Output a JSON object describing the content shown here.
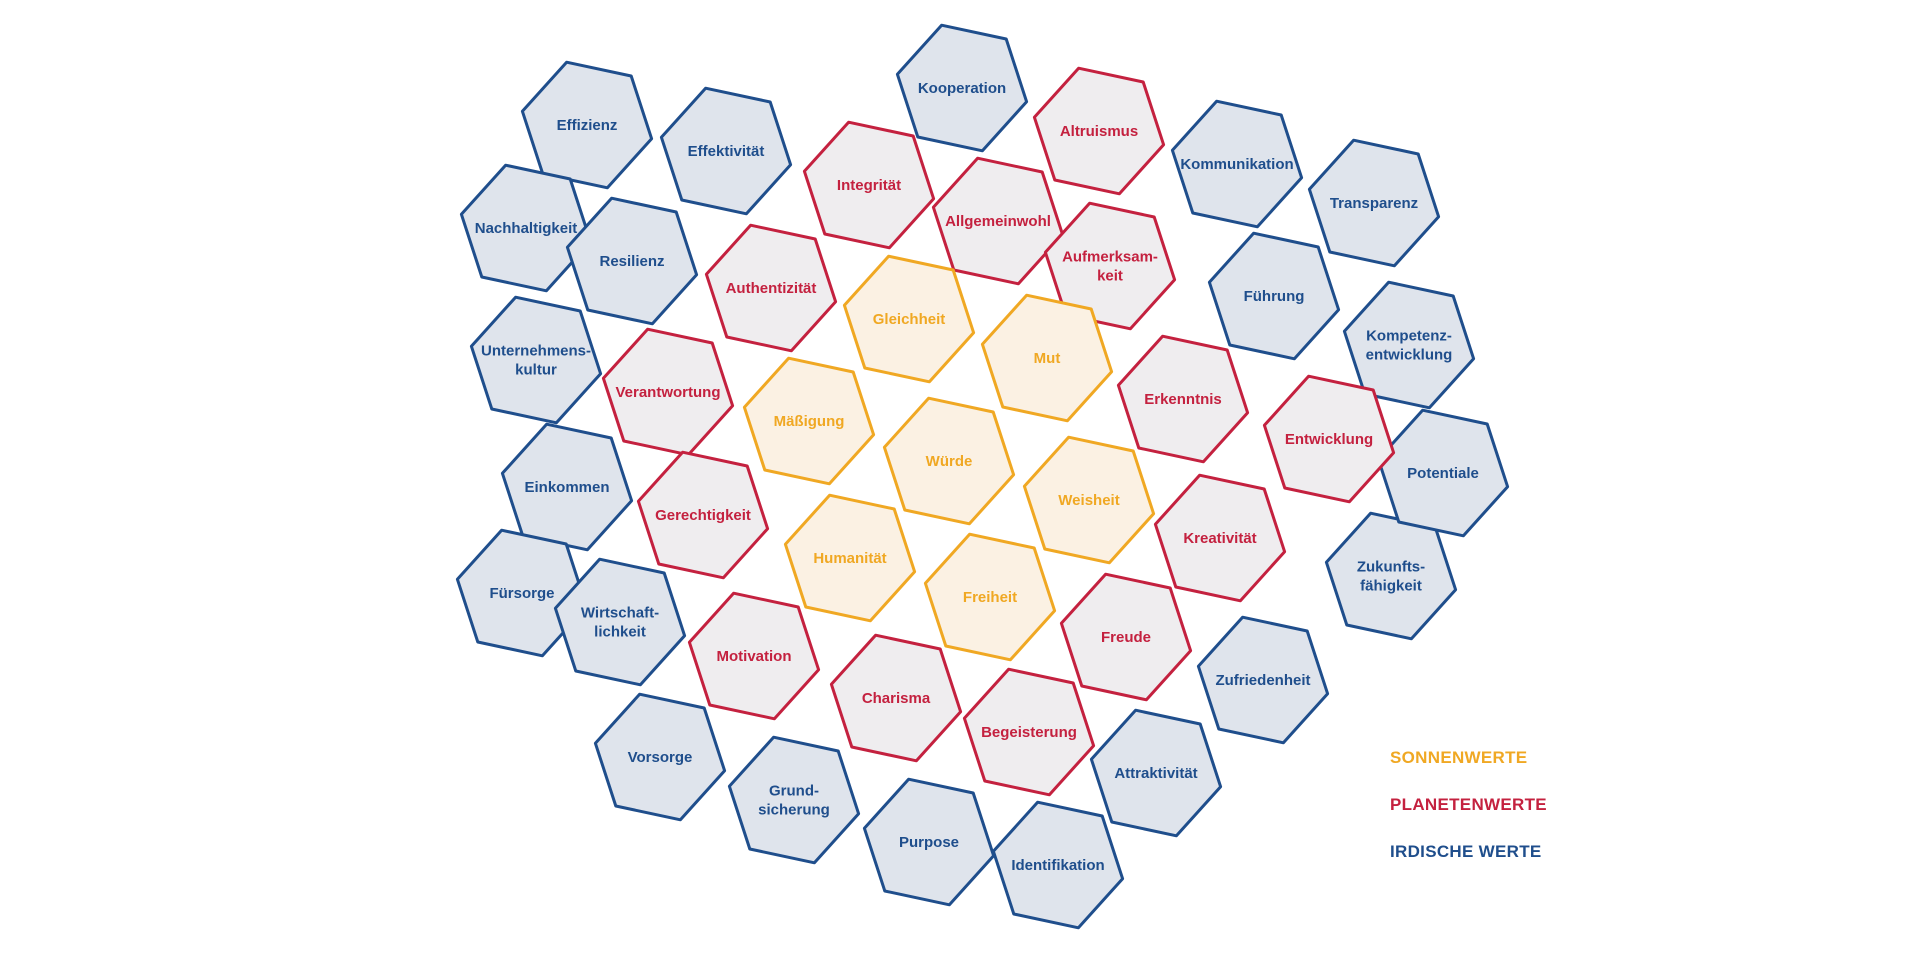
{
  "colors": {
    "sonnenwerte": "#f0a823",
    "planetenwerte": "#c4213f",
    "irdische_werte": "#1f4e8c",
    "fill_sonnenwerte": "#fbf1e3",
    "fill_planetenwerte": "#efedef",
    "fill_irdische_werte": "#dfe4ec"
  },
  "legend": {
    "sonnenwerte": "SONNENWERTE",
    "planetenwerte": "PLANETENWERTE",
    "irdische_werte": "IRDISCHE WERTE"
  },
  "values": [
    {
      "id": "kooperation",
      "lines": [
        "Kooperation"
      ],
      "group": "irdische_werte"
    },
    {
      "id": "effizienz",
      "lines": [
        "Effizienz"
      ],
      "group": "irdische_werte"
    },
    {
      "id": "effektivitaet",
      "lines": [
        "Effektivität"
      ],
      "group": "irdische_werte"
    },
    {
      "id": "nachhaltigkeit",
      "lines": [
        "Nachhaltigkeit"
      ],
      "group": "irdische_werte"
    },
    {
      "id": "resilienz",
      "lines": [
        "Resilienz"
      ],
      "group": "irdische_werte"
    },
    {
      "id": "unternehmenskultur",
      "lines": [
        "Unternehmens-",
        "kultur"
      ],
      "group": "irdische_werte"
    },
    {
      "id": "einkommen",
      "lines": [
        "Einkommen"
      ],
      "group": "irdische_werte"
    },
    {
      "id": "fuersorge",
      "lines": [
        "Fürsorge"
      ],
      "group": "irdische_werte"
    },
    {
      "id": "wirtschaftlichkeit",
      "lines": [
        "Wirtschaft-",
        "lichkeit"
      ],
      "group": "irdische_werte"
    },
    {
      "id": "vorsorge",
      "lines": [
        "Vorsorge"
      ],
      "group": "irdische_werte"
    },
    {
      "id": "grundsicherung",
      "lines": [
        "Grund-",
        "sicherung"
      ],
      "group": "irdische_werte"
    },
    {
      "id": "purpose",
      "lines": [
        "Purpose"
      ],
      "group": "irdische_werte"
    },
    {
      "id": "identifikation",
      "lines": [
        "Identifikation"
      ],
      "group": "irdische_werte"
    },
    {
      "id": "attraktivitaet",
      "lines": [
        "Attraktivität"
      ],
      "group": "irdische_werte"
    },
    {
      "id": "zufriedenheit",
      "lines": [
        "Zufriedenheit"
      ],
      "group": "irdische_werte"
    },
    {
      "id": "zukunftsfaehigkeit",
      "lines": [
        "Zukunfts-",
        "fähigkeit"
      ],
      "group": "irdische_werte"
    },
    {
      "id": "potentiale",
      "lines": [
        "Potentiale"
      ],
      "group": "irdische_werte"
    },
    {
      "id": "kompetenzentwicklung",
      "lines": [
        "Kompetenz-",
        "entwicklung"
      ],
      "group": "irdische_werte"
    },
    {
      "id": "fuehrung",
      "lines": [
        "Führung"
      ],
      "group": "irdische_werte"
    },
    {
      "id": "transparenz",
      "lines": [
        "Transparenz"
      ],
      "group": "irdische_werte"
    },
    {
      "id": "kommunikation",
      "lines": [
        "Kommunikation"
      ],
      "group": "irdische_werte"
    },
    {
      "id": "altruismus",
      "lines": [
        "Altruismus"
      ],
      "group": "planetenwerte"
    },
    {
      "id": "integritaet",
      "lines": [
        "Integrität"
      ],
      "group": "planetenwerte"
    },
    {
      "id": "allgemeinwohl",
      "lines": [
        "Allgemeinwohl"
      ],
      "group": "planetenwerte"
    },
    {
      "id": "aufmerksamkeit",
      "lines": [
        "Aufmerksam-",
        "keit"
      ],
      "group": "planetenwerte"
    },
    {
      "id": "authentizitaet",
      "lines": [
        "Authentizität"
      ],
      "group": "planetenwerte"
    },
    {
      "id": "verantwortung",
      "lines": [
        "Verantwortung"
      ],
      "group": "planetenwerte"
    },
    {
      "id": "gerechtigkeit",
      "lines": [
        "Gerechtigkeit"
      ],
      "group": "planetenwerte"
    },
    {
      "id": "motivation",
      "lines": [
        "Motivation"
      ],
      "group": "planetenwerte"
    },
    {
      "id": "charisma",
      "lines": [
        "Charisma"
      ],
      "group": "planetenwerte"
    },
    {
      "id": "begeisterung",
      "lines": [
        "Begeisterung"
      ],
      "group": "planetenwerte"
    },
    {
      "id": "freude",
      "lines": [
        "Freude"
      ],
      "group": "planetenwerte"
    },
    {
      "id": "kreativitaet",
      "lines": [
        "Kreativität"
      ],
      "group": "planetenwerte"
    },
    {
      "id": "entwicklung",
      "lines": [
        "Entwicklung"
      ],
      "group": "planetenwerte"
    },
    {
      "id": "erkenntnis",
      "lines": [
        "Erkenntnis"
      ],
      "group": "planetenwerte"
    },
    {
      "id": "gleichheit",
      "lines": [
        "Gleichheit"
      ],
      "group": "sonnenwerte"
    },
    {
      "id": "mut",
      "lines": [
        "Mut"
      ],
      "group": "sonnenwerte"
    },
    {
      "id": "maessigung",
      "lines": [
        "Mäßigung"
      ],
      "group": "sonnenwerte"
    },
    {
      "id": "wuerde",
      "lines": [
        "Würde"
      ],
      "group": "sonnenwerte"
    },
    {
      "id": "weisheit",
      "lines": [
        "Weisheit"
      ],
      "group": "sonnenwerte"
    },
    {
      "id": "humanitaet",
      "lines": [
        "Humanität"
      ],
      "group": "sonnenwerte"
    },
    {
      "id": "freiheit",
      "lines": [
        "Freiheit"
      ],
      "group": "sonnenwerte"
    }
  ]
}
